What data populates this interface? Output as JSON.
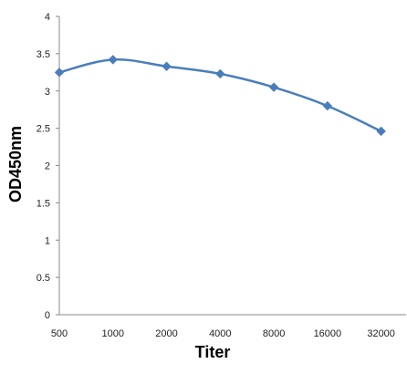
{
  "chart_data": {
    "type": "line",
    "title": "",
    "xlabel": "Titer",
    "ylabel": "OD450nm",
    "x_is_categorical": true,
    "categories": [
      "500",
      "1000",
      "2000",
      "4000",
      "8000",
      "16000",
      "32000"
    ],
    "series": [
      {
        "values": [
          3.25,
          3.42,
          3.33,
          3.23,
          3.05,
          2.8,
          2.46
        ],
        "color": "#4a7ebb",
        "marker": "diamond",
        "smooth": true
      }
    ],
    "ylim": [
      0,
      4
    ],
    "yticks": [
      0,
      0.5,
      1,
      1.5,
      2,
      2.5,
      3,
      3.5,
      4
    ],
    "ytick_labels": [
      "0",
      "0.5",
      "1",
      "1.5",
      "2",
      "2.5",
      "3",
      "3.5",
      "4"
    ],
    "grid": false,
    "legend": "none"
  }
}
